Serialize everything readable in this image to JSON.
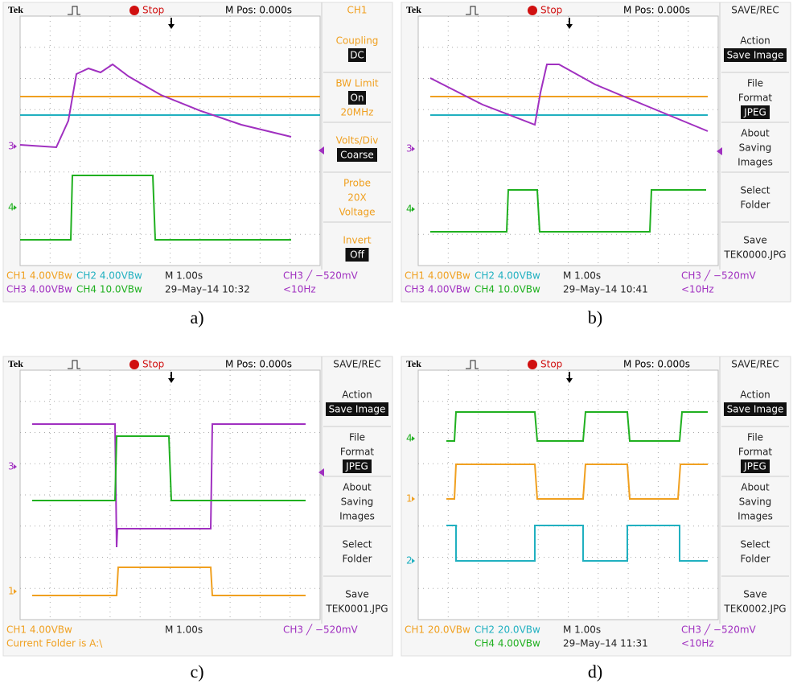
{
  "panels": [
    {
      "header": {
        "brand": "Tek",
        "state": "Stop",
        "mpos": "M Pos: 0.000s"
      },
      "menu": {
        "title": "CH1",
        "color": "#f0a020",
        "items": [
          {
            "lines": [
              "Coupling"
            ],
            "box": "DC"
          },
          {
            "lines": [
              "BW Limit"
            ],
            "box": "On",
            "after": [
              "20MHz"
            ]
          },
          {
            "lines": [
              "Volts/Div"
            ],
            "box": "Coarse"
          },
          {
            "lines": [
              "Probe",
              "20X",
              "Voltage"
            ]
          },
          {
            "lines": [
              "Invert"
            ],
            "box": "Off"
          }
        ]
      },
      "markers": [
        {
          "label": "3",
          "color": "#a030c0"
        },
        {
          "label": "4",
          "color": "#20b020"
        }
      ],
      "footer": [
        [
          {
            "text": "CH1  4.00VBw",
            "color": "#f0a020"
          },
          {
            "text": "CH2  4.00VBw",
            "color": "#20b0c0"
          },
          {
            "text": "M 1.00s",
            "color": "#222"
          },
          {
            "text": "CH3 ╱ −520mV",
            "color": "#a030c0"
          }
        ],
        [
          {
            "text": "CH3  4.00VBw",
            "color": "#a030c0"
          },
          {
            "text": "CH4  10.0VBw",
            "color": "#20b020"
          },
          {
            "text": "29–May–14 10:32",
            "color": "#222"
          },
          {
            "text": "<10Hz",
            "color": "#a030c0"
          }
        ]
      ],
      "caption": "a)"
    },
    {
      "header": {
        "brand": "Tek",
        "state": "Stop",
        "mpos": "M Pos: 0.000s"
      },
      "menu": {
        "title": "SAVE/REC",
        "color": "#222",
        "items": [
          {
            "lines": [
              "Action"
            ],
            "box": "Save Image"
          },
          {
            "lines": [
              "File",
              "Format"
            ],
            "box": "JPEG"
          },
          {
            "lines": [
              "About",
              "Saving",
              "Images"
            ]
          },
          {
            "lines": [
              "Select",
              "Folder"
            ]
          },
          {
            "lines": [
              "Save",
              "TEK0000.JPG"
            ]
          }
        ]
      },
      "markers": [
        {
          "label": "3",
          "color": "#a030c0"
        },
        {
          "label": "4",
          "color": "#20b020"
        }
      ],
      "footer": [
        [
          {
            "text": "CH1  4.00VBw",
            "color": "#f0a020"
          },
          {
            "text": "CH2  4.00VBw",
            "color": "#20b0c0"
          },
          {
            "text": "M 1.00s",
            "color": "#222"
          },
          {
            "text": "CH3 ╱ −520mV",
            "color": "#a030c0"
          }
        ],
        [
          {
            "text": "CH3  4.00VBw",
            "color": "#a030c0"
          },
          {
            "text": "CH4  10.0VBw",
            "color": "#20b020"
          },
          {
            "text": "29–May–14 10:41",
            "color": "#222"
          },
          {
            "text": "<10Hz",
            "color": "#a030c0"
          }
        ]
      ],
      "caption": "b)"
    },
    {
      "header": {
        "brand": "Tek",
        "state": "Stop",
        "mpos": "M Pos: 0.000s"
      },
      "menu": {
        "title": "SAVE/REC",
        "color": "#222",
        "items": [
          {
            "lines": [
              "Action"
            ],
            "box": "Save Image"
          },
          {
            "lines": [
              "File",
              "Format"
            ],
            "box": "JPEG"
          },
          {
            "lines": [
              "About",
              "Saving",
              "Images"
            ]
          },
          {
            "lines": [
              "Select",
              "Folder"
            ]
          },
          {
            "lines": [
              "Save",
              "TEK0001.JPG"
            ]
          }
        ]
      },
      "markers": [
        {
          "label": "3",
          "color": "#a030c0"
        },
        {
          "label": "1",
          "color": "#f0a020"
        }
      ],
      "footer": [
        [
          {
            "text": "CH1  4.00VBw",
            "color": "#f0a020"
          },
          null,
          {
            "text": "M 1.00s",
            "color": "#222"
          },
          {
            "text": "CH3 ╱ −520mV",
            "color": "#a030c0"
          }
        ],
        [
          {
            "text": "Current Folder is A:\\",
            "color": "#f0a020"
          }
        ]
      ],
      "caption": "c)"
    },
    {
      "header": {
        "brand": "Tek",
        "state": "Stop",
        "mpos": "M Pos: 0.000s"
      },
      "menu": {
        "title": "SAVE/REC",
        "color": "#222",
        "items": [
          {
            "lines": [
              "Action"
            ],
            "box": "Save Image"
          },
          {
            "lines": [
              "File",
              "Format"
            ],
            "box": "JPEG"
          },
          {
            "lines": [
              "About",
              "Saving",
              "Images"
            ]
          },
          {
            "lines": [
              "Select",
              "Folder"
            ]
          },
          {
            "lines": [
              "Save",
              "TEK0002.JPG"
            ]
          }
        ]
      },
      "markers": [
        {
          "label": "4",
          "color": "#20b020"
        },
        {
          "label": "1",
          "color": "#f0a020"
        },
        {
          "label": "2",
          "color": "#20b0c0"
        }
      ],
      "footer": [
        [
          {
            "text": "CH1  20.0VBw",
            "color": "#f0a020"
          },
          {
            "text": "CH2  20.0VBw",
            "color": "#20b0c0"
          },
          {
            "text": "M 1.00s",
            "color": "#222"
          },
          {
            "text": "CH3 ╱ −520mV",
            "color": "#a030c0"
          }
        ],
        [
          null,
          {
            "text": "CH4  4.00VBw",
            "color": "#20b020"
          },
          {
            "text": "29–May–14 11:31",
            "color": "#222"
          },
          {
            "text": "<10Hz",
            "color": "#a030c0"
          }
        ]
      ],
      "caption": "d)"
    }
  ]
}
